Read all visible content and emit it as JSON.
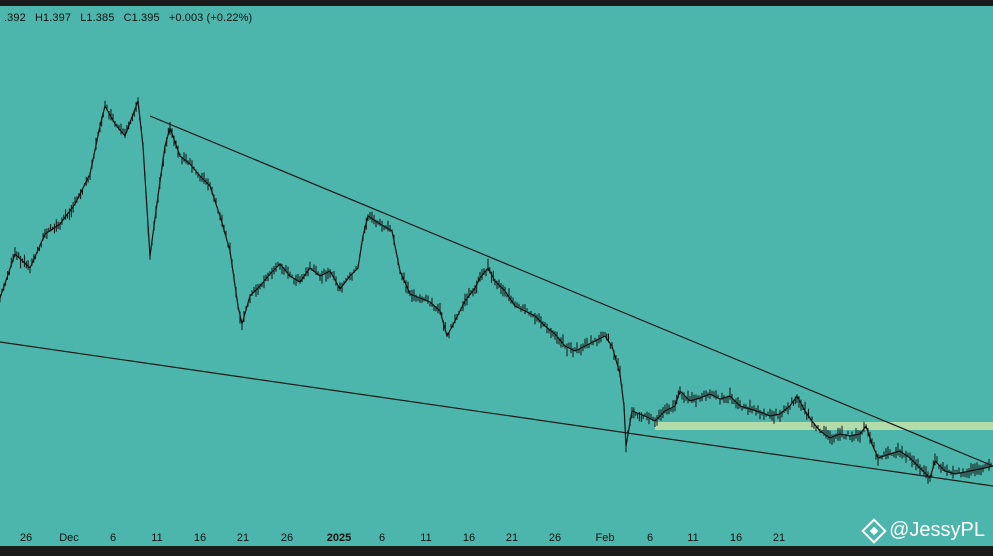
{
  "ohlc": {
    "open": ".392",
    "high": "H1.397",
    "low": "L1.385",
    "close": "C1.395",
    "change": "+0.003 (+0.22%)"
  },
  "colors": {
    "background": "#4db6ac",
    "candle": "#111111",
    "trendline": "#1a1a1a",
    "highlight_band": "#c5e3a8"
  },
  "watermark": {
    "handle": "@JessyPL",
    "icon": "binance-logo-icon"
  },
  "chart_data": {
    "type": "line",
    "x_axis_ticks": [
      "26",
      "Dec",
      "6",
      "11",
      "16",
      "21",
      "26",
      "2025",
      "6",
      "11",
      "16",
      "21",
      "26",
      "Feb",
      "6",
      "11",
      "16",
      "21"
    ],
    "series": [
      {
        "values": [
          [
            0,
            292
          ],
          [
            15,
            248
          ],
          [
            30,
            262
          ],
          [
            45,
            228
          ],
          [
            60,
            218
          ],
          [
            75,
            198
          ],
          [
            90,
            168
          ],
          [
            100,
            120
          ],
          [
            105,
            100
          ],
          [
            115,
            118
          ],
          [
            125,
            130
          ],
          [
            138,
            95
          ],
          [
            143,
            140
          ],
          [
            150,
            250
          ],
          [
            158,
            190
          ],
          [
            165,
            140
          ],
          [
            170,
            122
          ],
          [
            180,
            150
          ],
          [
            190,
            158
          ],
          [
            200,
            170
          ],
          [
            210,
            180
          ],
          [
            220,
            210
          ],
          [
            230,
            245
          ],
          [
            238,
            300
          ],
          [
            242,
            318
          ],
          [
            250,
            290
          ],
          [
            260,
            280
          ],
          [
            270,
            268
          ],
          [
            280,
            258
          ],
          [
            290,
            270
          ],
          [
            300,
            276
          ],
          [
            310,
            262
          ],
          [
            320,
            270
          ],
          [
            330,
            265
          ],
          [
            340,
            283
          ],
          [
            350,
            270
          ],
          [
            358,
            262
          ],
          [
            363,
            230
          ],
          [
            368,
            210
          ],
          [
            380,
            218
          ],
          [
            392,
            225
          ],
          [
            400,
            265
          ],
          [
            410,
            288
          ],
          [
            420,
            292
          ],
          [
            430,
            296
          ],
          [
            440,
            305
          ],
          [
            447,
            330
          ],
          [
            455,
            315
          ],
          [
            465,
            295
          ],
          [
            475,
            282
          ],
          [
            480,
            272
          ],
          [
            488,
            262
          ],
          [
            495,
            275
          ],
          [
            505,
            285
          ],
          [
            515,
            300
          ],
          [
            525,
            305
          ],
          [
            535,
            310
          ],
          [
            545,
            320
          ],
          [
            555,
            328
          ],
          [
            565,
            340
          ],
          [
            575,
            345
          ],
          [
            585,
            340
          ],
          [
            595,
            335
          ],
          [
            605,
            330
          ],
          [
            612,
            340
          ],
          [
            620,
            368
          ],
          [
            624,
            400
          ],
          [
            626,
            440
          ],
          [
            632,
            405
          ],
          [
            645,
            410
          ],
          [
            655,
            415
          ],
          [
            665,
            405
          ],
          [
            675,
            400
          ],
          [
            680,
            385
          ],
          [
            690,
            395
          ],
          [
            700,
            392
          ],
          [
            710,
            388
          ],
          [
            720,
            393
          ],
          [
            730,
            390
          ],
          [
            740,
            400
          ],
          [
            750,
            403
          ],
          [
            760,
            406
          ],
          [
            770,
            410
          ],
          [
            780,
            408
          ],
          [
            790,
            400
          ],
          [
            797,
            390
          ],
          [
            805,
            405
          ],
          [
            812,
            415
          ],
          [
            820,
            425
          ],
          [
            830,
            432
          ],
          [
            840,
            428
          ],
          [
            850,
            430
          ],
          [
            860,
            428
          ],
          [
            866,
            420
          ],
          [
            872,
            438
          ],
          [
            878,
            452
          ],
          [
            890,
            448
          ],
          [
            900,
            445
          ],
          [
            910,
            452
          ],
          [
            920,
            462
          ],
          [
            930,
            472
          ],
          [
            935,
            455
          ],
          [
            945,
            465
          ],
          [
            955,
            468
          ],
          [
            965,
            466
          ],
          [
            975,
            464
          ],
          [
            985,
            462
          ],
          [
            993,
            460
          ]
        ]
      }
    ],
    "trendlines": [
      {
        "name": "descending-resistance",
        "from": [
          150,
          110
        ],
        "to": [
          993,
          460
        ]
      },
      {
        "name": "lower-support",
        "from": [
          0,
          336
        ],
        "to": [
          993,
          480
        ]
      }
    ],
    "highlight_band": {
      "y_top": 416,
      "y_bottom": 424
    },
    "grid": false,
    "xlabel": "",
    "ylabel": ""
  }
}
